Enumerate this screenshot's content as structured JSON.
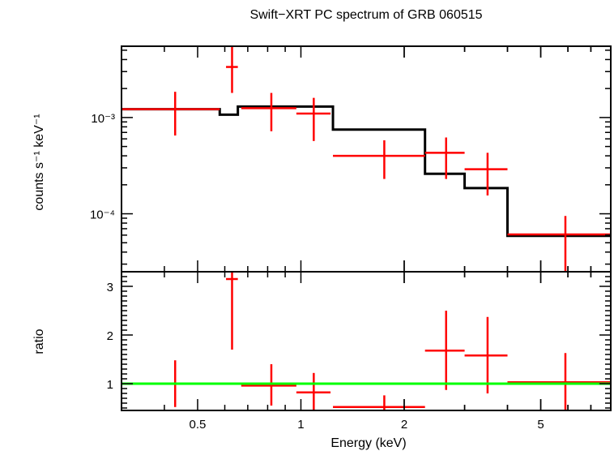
{
  "chart_data": [
    {
      "type": "line",
      "title": "Swift−XRT PC spectrum of GRB 060515",
      "xlabel": "Energy (keV)",
      "ylabel": "counts s⁻¹ keV⁻¹",
      "xscale": "log",
      "yscale": "log",
      "xlim": [
        0.3,
        8.0
      ],
      "ylim": [
        2.5e-05,
        0.0055
      ],
      "xticks": [
        {
          "value": 0.5,
          "label": "0.5"
        },
        {
          "value": 1,
          "label": "1"
        },
        {
          "value": 2,
          "label": "2"
        },
        {
          "value": 5,
          "label": "5"
        }
      ],
      "yticks": [
        {
          "value": 0.001,
          "label": "10⁻³"
        },
        {
          "value": 0.0001,
          "label": "10⁻⁴"
        }
      ],
      "series": [
        {
          "kind": "data",
          "color": "#ff0000",
          "points": [
            {
              "x": 0.43,
              "xlo": 0.3,
              "xhi": 0.58,
              "y": 0.00122,
              "ylo": 0.00065,
              "yhi": 0.00185
            },
            {
              "x": 0.63,
              "xlo": 0.605,
              "xhi": 0.655,
              "y": 0.00335,
              "ylo": 0.0018,
              "yhi": 0.0055
            },
            {
              "x": 0.82,
              "xlo": 0.67,
              "xhi": 0.97,
              "y": 0.00125,
              "ylo": 0.00072,
              "yhi": 0.0018
            },
            {
              "x": 1.09,
              "xlo": 0.97,
              "xhi": 1.22,
              "y": 0.0011,
              "ylo": 0.00057,
              "yhi": 0.0016
            },
            {
              "x": 1.75,
              "xlo": 1.24,
              "xhi": 2.3,
              "y": 0.0004,
              "ylo": 0.00023,
              "yhi": 0.00058
            },
            {
              "x": 2.65,
              "xlo": 2.3,
              "xhi": 3.0,
              "y": 0.00043,
              "ylo": 0.00023,
              "yhi": 0.00062
            },
            {
              "x": 3.5,
              "xlo": 3.0,
              "xhi": 4.0,
              "y": 0.00029,
              "ylo": 0.000155,
              "yhi": 0.00043
            },
            {
              "x": 5.9,
              "xlo": 4.0,
              "xhi": 8.0,
              "y": 6.1e-05,
              "ylo": 2.5e-05,
              "yhi": 9.5e-05
            }
          ]
        },
        {
          "kind": "model",
          "color": "#000000",
          "steps": [
            {
              "xlo": 0.3,
              "xhi": 0.58,
              "y": 0.00122
            },
            {
              "xlo": 0.58,
              "xhi": 0.655,
              "y": 0.00107
            },
            {
              "xlo": 0.655,
              "xhi": 0.97,
              "y": 0.0013
            },
            {
              "xlo": 0.97,
              "xhi": 1.24,
              "y": 0.0013
            },
            {
              "xlo": 1.24,
              "xhi": 2.3,
              "y": 0.00075
            },
            {
              "xlo": 2.3,
              "xhi": 3.0,
              "y": 0.00026
            },
            {
              "xlo": 3.0,
              "xhi": 4.0,
              "y": 0.000185
            },
            {
              "xlo": 4.0,
              "xhi": 8.0,
              "y": 5.9e-05
            }
          ]
        }
      ]
    },
    {
      "type": "line",
      "xlabel": "Energy (keV)",
      "ylabel": "ratio",
      "xscale": "log",
      "yscale": "linear",
      "xlim": [
        0.3,
        8.0
      ],
      "ylim": [
        0.45,
        3.3
      ],
      "yticks": [
        {
          "value": 1,
          "label": "1"
        },
        {
          "value": 2,
          "label": "2"
        },
        {
          "value": 3,
          "label": "3"
        }
      ],
      "series": [
        {
          "kind": "data",
          "color": "#ff0000",
          "points": [
            {
              "x": 0.43,
              "xlo": 0.3,
              "xhi": 0.58,
              "y": 1.0,
              "ylo": 0.52,
              "yhi": 1.48
            },
            {
              "x": 0.63,
              "xlo": 0.605,
              "xhi": 0.655,
              "y": 3.15,
              "ylo": 1.7,
              "yhi": 3.3
            },
            {
              "x": 0.82,
              "xlo": 0.67,
              "xhi": 0.97,
              "y": 0.96,
              "ylo": 0.55,
              "yhi": 1.4
            },
            {
              "x": 1.09,
              "xlo": 0.97,
              "xhi": 1.22,
              "y": 0.82,
              "ylo": 0.45,
              "yhi": 1.22
            },
            {
              "x": 1.75,
              "xlo": 1.24,
              "xhi": 2.3,
              "y": 0.52,
              "ylo": 0.45,
              "yhi": 0.76
            },
            {
              "x": 2.65,
              "xlo": 2.3,
              "xhi": 3.0,
              "y": 1.68,
              "ylo": 0.87,
              "yhi": 2.5
            },
            {
              "x": 3.5,
              "xlo": 3.0,
              "xhi": 4.0,
              "y": 1.58,
              "ylo": 0.8,
              "yhi": 2.37
            },
            {
              "x": 5.9,
              "xlo": 4.0,
              "xhi": 8.0,
              "y": 1.03,
              "ylo": 0.45,
              "yhi": 1.63
            }
          ]
        },
        {
          "kind": "reference",
          "color": "#00ff00",
          "y": 1.0
        }
      ]
    }
  ]
}
